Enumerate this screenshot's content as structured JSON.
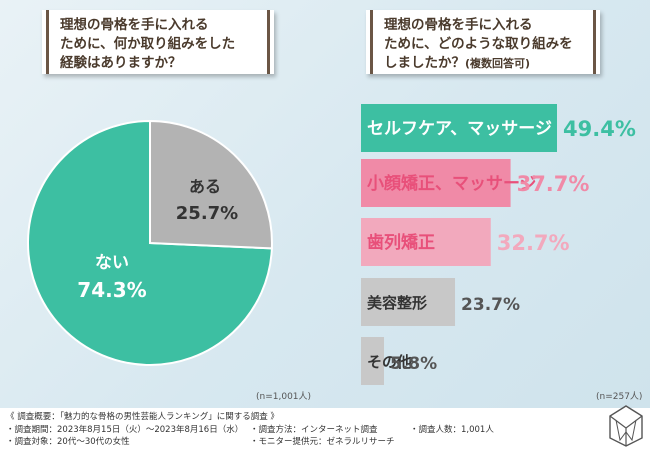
{
  "question_left": {
    "lines": [
      "理想の骨格を手に入れる",
      "ために、何か取り組みをした",
      "経験はありますか？"
    ]
  },
  "question_right": {
    "lines": [
      "理想の骨格を手に入れる",
      "ために、どのような取り組みを",
      "しましたか？"
    ],
    "note": "(複数回答可)"
  },
  "chart_data": [
    {
      "type": "pie",
      "categories": [
        "ない",
        "ある"
      ],
      "values": [
        74.3,
        25.7
      ],
      "value_labels": [
        "74.3%",
        "25.7%"
      ],
      "colors": [
        "#3dbfa2",
        "#b3b3b3"
      ],
      "sample": "(n=1,001人)"
    },
    {
      "type": "bar",
      "orientation": "horizontal",
      "categories": [
        "セルフケア、マッサージ",
        "小顔矯正、マッサージ",
        "歯列矯正",
        "美容整形",
        "その他"
      ],
      "values": [
        49.4,
        37.7,
        32.7,
        23.7,
        5.8
      ],
      "value_labels": [
        "49.4%",
        "37.7%",
        "32.7%",
        "23.7%",
        "5.8%"
      ],
      "colors": [
        "#3dbfa2",
        "#f08aa7",
        "#f2a9bd",
        "#c8c8c8",
        "#c8c8c8"
      ],
      "label_colors": [
        "#ffffff",
        "#e8507a",
        "#e8507a",
        "#333333",
        "#333333"
      ],
      "value_colors": [
        "#3dbfa2",
        "#f08aa7",
        "#f2a9bd",
        "#555555",
        "#555555"
      ],
      "sample": "(n=257人)"
    }
  ],
  "footer": {
    "summary": "《 調査概要：「魅力的な骨格の男性芸能人ランキング」に関する調査 》",
    "period": "・調査期間：2023年8月15日（火）〜2023年8月16日（水）",
    "method": "・調査方法：インターネット調査",
    "count": "・調査人数：1,001人",
    "target": "・調査対象：20代〜30代の女性",
    "provider": "・モニター提供元：ゼネラルリサーチ"
  }
}
